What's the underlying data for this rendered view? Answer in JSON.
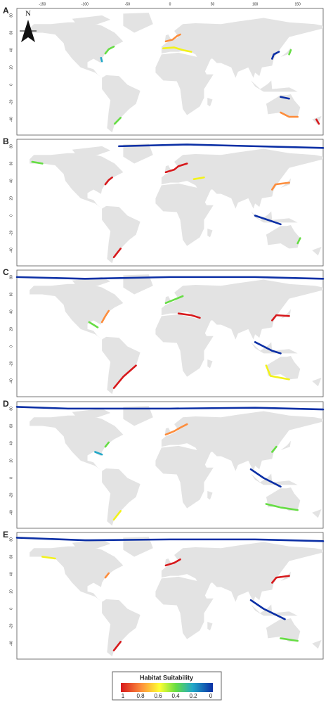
{
  "panels": [
    {
      "label": "A"
    },
    {
      "label": "B"
    },
    {
      "label": "C"
    },
    {
      "label": "D"
    },
    {
      "label": "E"
    }
  ],
  "longitude_ticks": [
    -150,
    -100,
    -50,
    0,
    50,
    100,
    150
  ],
  "latitude_ticks": [
    80,
    60,
    40,
    20,
    0,
    -20,
    -40
  ],
  "north_label": "N",
  "legend": {
    "title": "Habitat Suitability",
    "ticks": [
      1,
      0.8,
      0.6,
      0.4,
      0.2,
      0
    ]
  }
}
